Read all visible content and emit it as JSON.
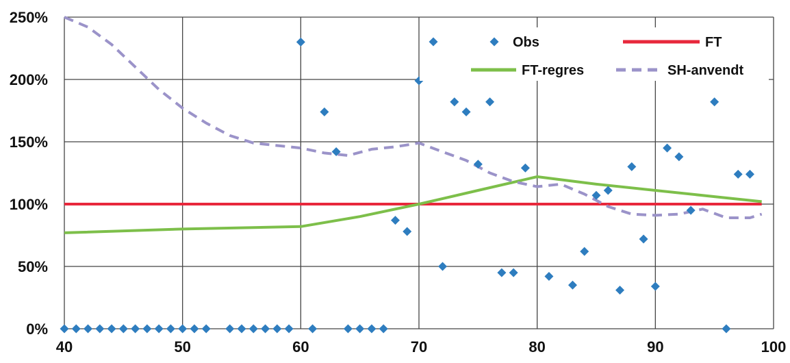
{
  "chart_data": {
    "type": "scatter",
    "title": "",
    "xlabel": "",
    "ylabel": "",
    "xlim": [
      40,
      100
    ],
    "ylim": [
      0,
      2.5
    ],
    "x_ticks": [
      40,
      50,
      60,
      70,
      80,
      90,
      100
    ],
    "x_tick_labels": [
      "40",
      "50",
      "60",
      "70",
      "80",
      "90",
      "100"
    ],
    "y_ticks": [
      0,
      0.5,
      1.0,
      1.5,
      2.0,
      2.5
    ],
    "y_tick_labels": [
      "0%",
      "50%",
      "100%",
      "150%",
      "200%",
      "250%"
    ],
    "grid": true,
    "legend_position": "top-right",
    "series": [
      {
        "name": "Obs",
        "kind": "scatter",
        "color": "#2e7dbf",
        "marker": "diamond",
        "points": [
          [
            40,
            0
          ],
          [
            41,
            0
          ],
          [
            42,
            0
          ],
          [
            43,
            0
          ],
          [
            44,
            0
          ],
          [
            45,
            0
          ],
          [
            46,
            0
          ],
          [
            47,
            0
          ],
          [
            48,
            0
          ],
          [
            49,
            0
          ],
          [
            50,
            0
          ],
          [
            51,
            0
          ],
          [
            52,
            0
          ],
          [
            54,
            0
          ],
          [
            55,
            0
          ],
          [
            56,
            0
          ],
          [
            57,
            0
          ],
          [
            58,
            0
          ],
          [
            59,
            0
          ],
          [
            61,
            0
          ],
          [
            64,
            0
          ],
          [
            65,
            0
          ],
          [
            66,
            0
          ],
          [
            67,
            0
          ],
          [
            96,
            0
          ],
          [
            60,
            2.3
          ],
          [
            62,
            1.74
          ],
          [
            63,
            1.42
          ],
          [
            68,
            0.87
          ],
          [
            69,
            0.78
          ],
          [
            70,
            1.99
          ],
          [
            71,
            2.32
          ],
          [
            72,
            0.5
          ],
          [
            73,
            1.82
          ],
          [
            74,
            1.74
          ],
          [
            75,
            1.32
          ],
          [
            76,
            1.82
          ],
          [
            77,
            0.45
          ],
          [
            78,
            0.45
          ],
          [
            79,
            1.29
          ],
          [
            81,
            0.42
          ],
          [
            83,
            0.35
          ],
          [
            84,
            0.62
          ],
          [
            85,
            1.07
          ],
          [
            86,
            1.11
          ],
          [
            87,
            0.31
          ],
          [
            88,
            1.3
          ],
          [
            89,
            0.72
          ],
          [
            90,
            0.34
          ],
          [
            91,
            1.45
          ],
          [
            92,
            1.38
          ],
          [
            93,
            0.95
          ],
          [
            95,
            1.82
          ],
          [
            97,
            1.24
          ],
          [
            98,
            1.24
          ]
        ]
      },
      {
        "name": "FT",
        "kind": "line",
        "color": "#e8283c",
        "dash": "solid",
        "points": [
          [
            40,
            1.0
          ],
          [
            99,
            1.0
          ]
        ]
      },
      {
        "name": "FT-regres",
        "kind": "line",
        "color": "#7dbf4a",
        "dash": "solid",
        "points": [
          [
            40,
            0.77
          ],
          [
            50,
            0.8
          ],
          [
            60,
            0.82
          ],
          [
            65,
            0.9
          ],
          [
            70,
            1.0
          ],
          [
            75,
            1.11
          ],
          [
            80,
            1.22
          ],
          [
            85,
            1.16
          ],
          [
            90,
            1.11
          ],
          [
            95,
            1.06
          ],
          [
            99,
            1.02
          ]
        ]
      },
      {
        "name": "SH-anvendt",
        "kind": "line",
        "color": "#9b93c9",
        "dash": "dashed",
        "points": [
          [
            40,
            2.5
          ],
          [
            42,
            2.42
          ],
          [
            44,
            2.28
          ],
          [
            46,
            2.1
          ],
          [
            48,
            1.92
          ],
          [
            50,
            1.77
          ],
          [
            52,
            1.65
          ],
          [
            54,
            1.55
          ],
          [
            56,
            1.49
          ],
          [
            58,
            1.47
          ],
          [
            60,
            1.45
          ],
          [
            62,
            1.41
          ],
          [
            64,
            1.39
          ],
          [
            66,
            1.44
          ],
          [
            68,
            1.46
          ],
          [
            70,
            1.49
          ],
          [
            72,
            1.42
          ],
          [
            74,
            1.35
          ],
          [
            76,
            1.25
          ],
          [
            78,
            1.18
          ],
          [
            80,
            1.14
          ],
          [
            82,
            1.16
          ],
          [
            84,
            1.08
          ],
          [
            86,
            0.98
          ],
          [
            88,
            0.92
          ],
          [
            90,
            0.91
          ],
          [
            92,
            0.92
          ],
          [
            94,
            0.96
          ],
          [
            96,
            0.89
          ],
          [
            98,
            0.89
          ],
          [
            99,
            0.92
          ]
        ]
      }
    ],
    "legend": [
      {
        "series": "Obs",
        "label": "Obs"
      },
      {
        "series": "FT",
        "label": "FT"
      },
      {
        "series": "FT-regres",
        "label": "FT-regres"
      },
      {
        "series": "SH-anvendt",
        "label": "SH-anvendt"
      }
    ]
  }
}
